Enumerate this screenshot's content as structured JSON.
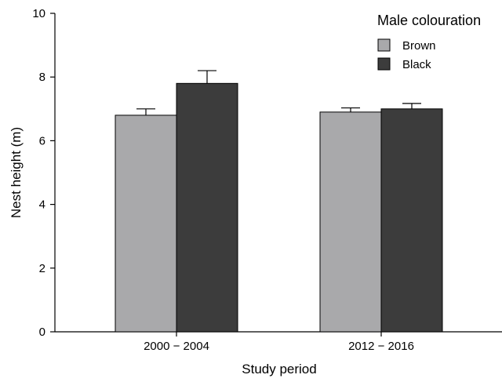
{
  "chart_data": {
    "type": "bar",
    "categories": [
      "2000 − 2004",
      "2012 − 2016"
    ],
    "series": [
      {
        "name": "Brown",
        "values": [
          6.8,
          6.9
        ],
        "errors": [
          0.2,
          0.13
        ],
        "color": "#a9a9ab"
      },
      {
        "name": "Black",
        "values": [
          7.8,
          7.0
        ],
        "errors": [
          0.4,
          0.17
        ],
        "color": "#3c3c3c"
      }
    ],
    "xlabel": "Study period",
    "ylabel": "Nest height (m)",
    "ylim": [
      0,
      10
    ],
    "yticks": [
      "0",
      "2",
      "4",
      "6",
      "8",
      "10"
    ],
    "grid": false,
    "legend": {
      "title": "Male colouration",
      "position": "top-right"
    }
  }
}
